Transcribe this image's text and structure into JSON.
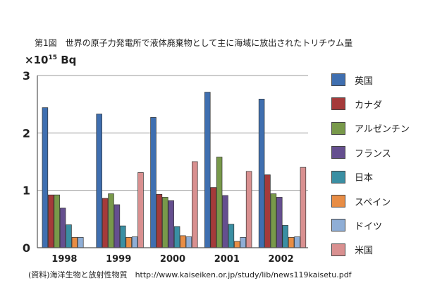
{
  "figure": {
    "title": "第1図　世界の原子力発電所で液体廃棄物として主に海域に放出されたトリチウム量",
    "unit_prefix": "×10",
    "unit_exp": "15",
    "unit_suffix": " Bq",
    "source": "(資料)海洋生物と放射性物質　http://www.kaiseiken.or.jp/study/lib/news119kaisetu.pdf"
  },
  "chart_data": {
    "type": "bar",
    "title": "第1図　世界の原子力発電所で液体廃棄物として主に海域に放出されたトリチウム量",
    "ylabel": "×10^15 Bq",
    "xlabel": "",
    "ylim": [
      0,
      3
    ],
    "yticks": [
      "0",
      "1",
      "2",
      "3"
    ],
    "grid": true,
    "legend_position": "right",
    "categories": [
      "1998",
      "1999",
      "2000",
      "2001",
      "2002"
    ],
    "series": [
      {
        "name": "英国",
        "color": "#3f6fb0",
        "values": [
          2.44,
          2.33,
          2.27,
          2.71,
          2.59
        ]
      },
      {
        "name": "カナダ",
        "color": "#a53a3a",
        "values": [
          0.92,
          0.86,
          0.93,
          1.05,
          1.27
        ]
      },
      {
        "name": "アルゼンチン",
        "color": "#78994a",
        "values": [
          0.92,
          0.94,
          0.88,
          1.58,
          0.94
        ]
      },
      {
        "name": "フランス",
        "color": "#654f8f",
        "values": [
          0.69,
          0.75,
          0.82,
          0.91,
          0.88
        ]
      },
      {
        "name": "日本",
        "color": "#3a8fa3",
        "values": [
          0.4,
          0.38,
          0.37,
          0.41,
          0.39
        ]
      },
      {
        "name": "スペイン",
        "color": "#e88d45",
        "values": [
          0.18,
          0.18,
          0.21,
          0.11,
          0.18
        ]
      },
      {
        "name": "ドイツ",
        "color": "#8faed6",
        "values": [
          0.18,
          0.19,
          0.19,
          0.18,
          0.19
        ]
      },
      {
        "name": "米国",
        "color": "#d99090",
        "values": [
          0.0,
          1.31,
          1.5,
          1.33,
          1.4
        ]
      }
    ]
  }
}
